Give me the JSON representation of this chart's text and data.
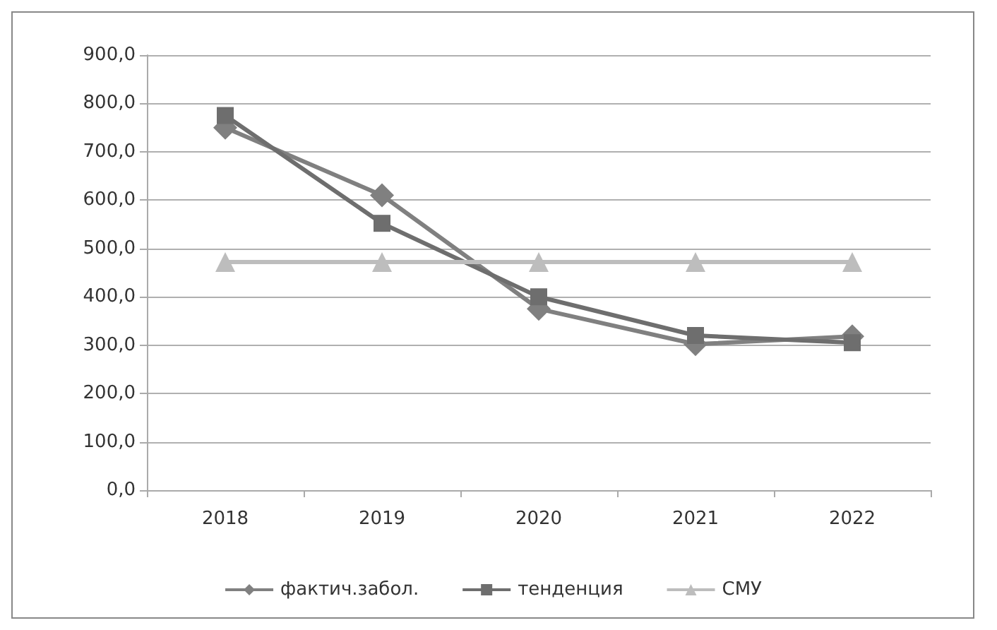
{
  "chart_data": {
    "type": "line",
    "categories": [
      "2018",
      "2019",
      "2020",
      "2021",
      "2022"
    ],
    "series": [
      {
        "name": "фактич.забол.",
        "color": "#808080",
        "marker": "diamond",
        "values": [
          750,
          610,
          375,
          302,
          318
        ]
      },
      {
        "name": "тенденция",
        "color": "#6e6e6e",
        "marker": "square",
        "values": [
          775,
          552,
          400,
          320,
          305
        ]
      },
      {
        "name": "СМУ",
        "color": "#bdbdbd",
        "marker": "triangle",
        "values": [
          472,
          472,
          472,
          472,
          472
        ]
      }
    ],
    "ylim": [
      0,
      900
    ],
    "yticks": [
      {
        "value": 0,
        "label": "0,0"
      },
      {
        "value": 100,
        "label": "100,0"
      },
      {
        "value": 200,
        "label": "200,0"
      },
      {
        "value": 300,
        "label": "300,0"
      },
      {
        "value": 400,
        "label": "400,0"
      },
      {
        "value": 500,
        "label": "500,0"
      },
      {
        "value": 600,
        "label": "600,0"
      },
      {
        "value": 700,
        "label": "700,0"
      },
      {
        "value": 800,
        "label": "800,0"
      },
      {
        "value": 900,
        "label": "900,0"
      }
    ],
    "grid": "y",
    "legend": "bottom"
  }
}
